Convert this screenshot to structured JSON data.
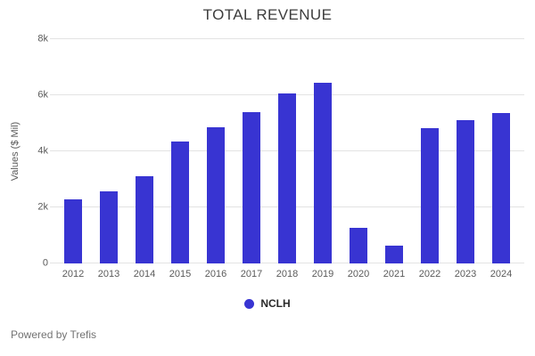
{
  "chart_data": {
    "type": "bar",
    "title": "TOTAL REVENUE",
    "xlabel": "",
    "ylabel": "Values ($ Mil)",
    "series_name": "NCLH",
    "categories": [
      "2012",
      "2013",
      "2014",
      "2015",
      "2016",
      "2017",
      "2018",
      "2019",
      "2020",
      "2021",
      "2022",
      "2023",
      "2024"
    ],
    "values": [
      2280,
      2570,
      3120,
      4350,
      4870,
      5400,
      6060,
      6460,
      1280,
      650,
      4840,
      5100,
      5350
    ],
    "ylim": [
      0,
      8000
    ],
    "yticks": [
      {
        "value": 0,
        "label": "0"
      },
      {
        "value": 2000,
        "label": "2k"
      },
      {
        "value": 4000,
        "label": "4k"
      },
      {
        "value": 6000,
        "label": "6k"
      },
      {
        "value": 8000,
        "label": "8k"
      }
    ],
    "grid": true,
    "legend_position": "bottom"
  },
  "colors": {
    "bar": "#3834d2",
    "title": "#3d3d3d",
    "axis_text": "#5a5a5a",
    "gridline": "#e3e3e3",
    "background": "#ffffff",
    "footer_text": "#737373"
  },
  "footer": {
    "text": "Powered by Trefis"
  }
}
